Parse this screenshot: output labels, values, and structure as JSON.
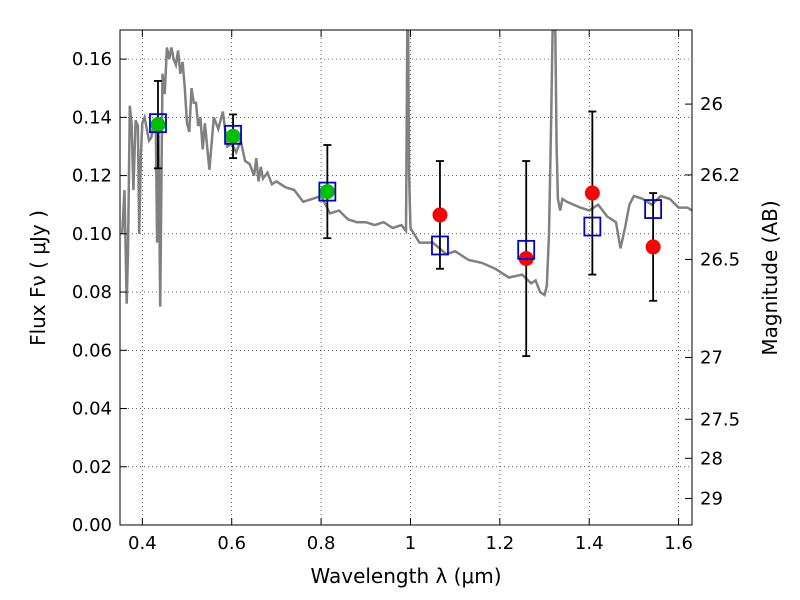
{
  "chart_data": {
    "type": "scatter",
    "title": "",
    "xlabel": "Wavelength  λ (μm)",
    "ylabel": "Flux  Fν  ( μJy )",
    "ylabel_right": "Magnitude (AB)",
    "xlim": [
      0.35,
      1.63
    ],
    "ylim": [
      0.0,
      0.17
    ],
    "grid": true,
    "x_ticks": [
      {
        "value": 0.4,
        "label": "0.4"
      },
      {
        "value": 0.6,
        "label": "0.6"
      },
      {
        "value": 0.8,
        "label": "0.8"
      },
      {
        "value": 1.0,
        "label": "1"
      },
      {
        "value": 1.2,
        "label": "1.2"
      },
      {
        "value": 1.4,
        "label": "1.4"
      },
      {
        "value": 1.6,
        "label": "1.6"
      }
    ],
    "y_ticks": [
      {
        "value": 0.0,
        "label": "0.00"
      },
      {
        "value": 0.02,
        "label": "0.02"
      },
      {
        "value": 0.04,
        "label": "0.04"
      },
      {
        "value": 0.06,
        "label": "0.06"
      },
      {
        "value": 0.08,
        "label": "0.08"
      },
      {
        "value": 0.1,
        "label": "0.10"
      },
      {
        "value": 0.12,
        "label": "0.12"
      },
      {
        "value": 0.14,
        "label": "0.14"
      },
      {
        "value": 0.16,
        "label": "0.16"
      }
    ],
    "right_ticks": [
      {
        "value": 26,
        "label": "26"
      },
      {
        "value": 26.2,
        "label": "26.2"
      },
      {
        "value": 26.5,
        "label": "26.5"
      },
      {
        "value": 27,
        "label": "27"
      },
      {
        "value": 27.5,
        "label": "27.5"
      },
      {
        "value": 28,
        "label": "28"
      },
      {
        "value": 29,
        "label": "29"
      }
    ],
    "colors": {
      "template": "#808080",
      "observed_detected": "#00bf00",
      "observed_other": "#ff0000",
      "model": "#0000cc",
      "errorbar": "#000000"
    },
    "template_spectrum": {
      "x": [
        0.355,
        0.36,
        0.365,
        0.368,
        0.372,
        0.376,
        0.38,
        0.385,
        0.39,
        0.393,
        0.397,
        0.4,
        0.405,
        0.41,
        0.415,
        0.42,
        0.425,
        0.43,
        0.433,
        0.436,
        0.44,
        0.445,
        0.45,
        0.455,
        0.46,
        0.465,
        0.47,
        0.475,
        0.48,
        0.485,
        0.49,
        0.495,
        0.5,
        0.505,
        0.51,
        0.515,
        0.52,
        0.525,
        0.53,
        0.535,
        0.54,
        0.55,
        0.56,
        0.57,
        0.58,
        0.59,
        0.6,
        0.61,
        0.62,
        0.63,
        0.64,
        0.65,
        0.655,
        0.66,
        0.665,
        0.67,
        0.68,
        0.69,
        0.7,
        0.72,
        0.74,
        0.76,
        0.78,
        0.8,
        0.82,
        0.84,
        0.86,
        0.88,
        0.9,
        0.92,
        0.94,
        0.96,
        0.98,
        0.99,
        0.993,
        0.995,
        0.997,
        1.0,
        1.02,
        1.05,
        1.08,
        1.1,
        1.13,
        1.16,
        1.19,
        1.22,
        1.25,
        1.27,
        1.28,
        1.29,
        1.3,
        1.305,
        1.31,
        1.315,
        1.318,
        1.321,
        1.324,
        1.327,
        1.33,
        1.335,
        1.34,
        1.35,
        1.38,
        1.4,
        1.42,
        1.44,
        1.46,
        1.47,
        1.48,
        1.49,
        1.5,
        1.52,
        1.54,
        1.56,
        1.58,
        1.6,
        1.62,
        1.63
      ],
      "y": [
        0.1,
        0.115,
        0.076,
        0.094,
        0.144,
        0.138,
        0.115,
        0.139,
        0.137,
        0.1,
        0.128,
        0.138,
        0.14,
        0.136,
        0.132,
        0.133,
        0.138,
        0.137,
        0.097,
        0.139,
        0.075,
        0.155,
        0.148,
        0.164,
        0.16,
        0.164,
        0.16,
        0.158,
        0.163,
        0.155,
        0.159,
        0.15,
        0.138,
        0.135,
        0.15,
        0.145,
        0.145,
        0.137,
        0.14,
        0.129,
        0.138,
        0.122,
        0.14,
        0.136,
        0.142,
        0.13,
        0.131,
        0.128,
        0.132,
        0.125,
        0.124,
        0.12,
        0.126,
        0.118,
        0.123,
        0.119,
        0.121,
        0.117,
        0.118,
        0.116,
        0.115,
        0.111,
        0.112,
        0.113,
        0.107,
        0.108,
        0.105,
        0.104,
        0.104,
        0.103,
        0.104,
        0.102,
        0.103,
        0.101,
        0.17,
        0.17,
        0.12,
        0.102,
        0.097,
        0.097,
        0.093,
        0.094,
        0.091,
        0.09,
        0.088,
        0.085,
        0.086,
        0.083,
        0.084,
        0.08,
        0.079,
        0.082,
        0.1,
        0.14,
        0.17,
        0.17,
        0.17,
        0.13,
        0.112,
        0.108,
        0.112,
        0.111,
        0.109,
        0.108,
        0.11,
        0.106,
        0.104,
        0.095,
        0.102,
        0.11,
        0.113,
        0.112,
        0.11,
        0.113,
        0.112,
        0.109,
        0.109,
        0.108
      ]
    },
    "series": [
      {
        "marker": "circle",
        "color": "#00bf00",
        "x": [
          0.435,
          0.603,
          0.814
        ],
        "y": [
          0.1375,
          0.1335,
          0.1145
        ],
        "yerr": [
          0.015,
          0.0075,
          0.016
        ]
      },
      {
        "marker": "circle",
        "color": "#ff0000",
        "x": [
          1.066,
          1.259,
          1.407,
          1.543
        ],
        "y": [
          0.1065,
          0.0915,
          0.114,
          0.0955
        ],
        "yerr": [
          0.0185,
          0.0335,
          0.028,
          0.0185
        ]
      },
      {
        "marker": "square-open",
        "color": "#0000cc",
        "x": [
          0.435,
          0.603,
          0.814,
          1.066,
          1.259,
          1.407,
          1.543
        ],
        "y": [
          0.138,
          0.134,
          0.1145,
          0.096,
          0.0945,
          0.1025,
          0.1085
        ]
      }
    ]
  }
}
